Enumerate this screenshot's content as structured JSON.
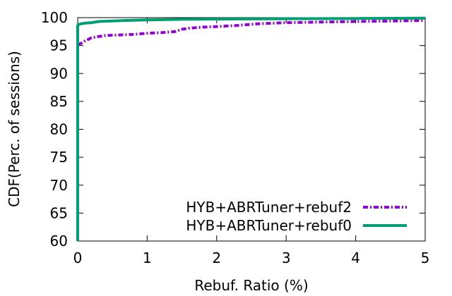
{
  "chart_data": {
    "type": "line",
    "title": "",
    "xlabel": "Rebuf. Ratio (%)",
    "ylabel": "CDF(Perc. of sessions)",
    "xlim": [
      0,
      5
    ],
    "ylim": [
      60,
      100
    ],
    "xticks": [
      "0",
      "1",
      "2",
      "3",
      "4",
      "5"
    ],
    "yticks": [
      "60",
      "65",
      "70",
      "75",
      "80",
      "85",
      "90",
      "95",
      "100"
    ],
    "grid": false,
    "legend_position": "bottom-right",
    "series": [
      {
        "name": "HYB+ABRTuner+rebuf2",
        "color": "#9400d3",
        "style": "dash-dot",
        "x": [
          0,
          0.05,
          0.1,
          0.15,
          0.2,
          0.3,
          0.4,
          0.6,
          0.8,
          1.0,
          1.2,
          1.4,
          1.5,
          1.6,
          1.8,
          2.0,
          2.3,
          2.6,
          2.8,
          3.0,
          3.5,
          4.0,
          4.5,
          5.0
        ],
        "y": [
          95.2,
          95.4,
          95.8,
          96.1,
          96.4,
          96.6,
          96.8,
          96.9,
          97.0,
          97.2,
          97.3,
          97.5,
          97.9,
          98.1,
          98.3,
          98.4,
          98.6,
          98.9,
          99.0,
          99.1,
          99.2,
          99.3,
          99.4,
          99.5
        ]
      },
      {
        "name": "HYB+ABRTuner+rebuf0",
        "color": "#009e73",
        "style": "solid",
        "x": [
          0,
          0,
          0.02,
          0.05,
          0.1,
          0.2,
          0.3,
          0.5,
          0.7,
          1.0,
          1.5,
          2.0,
          3.0,
          4.0,
          5.0
        ],
        "y": [
          60,
          98.6,
          98.8,
          98.9,
          99.0,
          99.1,
          99.3,
          99.4,
          99.5,
          99.6,
          99.7,
          99.75,
          99.8,
          99.85,
          99.9
        ]
      }
    ]
  }
}
